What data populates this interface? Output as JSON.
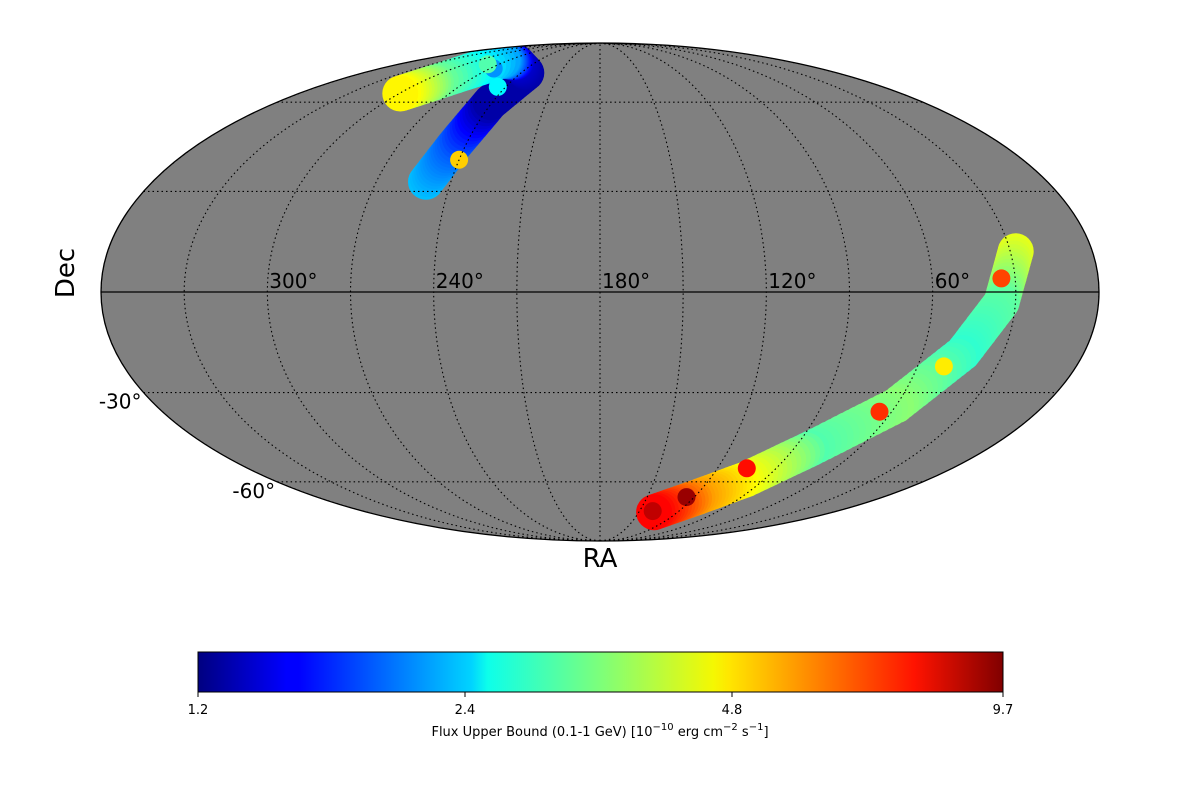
{
  "chart_data": {
    "type": "heatmap",
    "projection": "mollweide",
    "background_color": "#808080",
    "grid": true,
    "axis": {
      "xlabel": "RA",
      "ylabel": "Dec",
      "ra_ticks": [
        "300°",
        "240°",
        "180°",
        "120°",
        "60°"
      ],
      "dec_ticks": [
        "-30°",
        "-60°"
      ]
    },
    "colorbar": {
      "colormap": "jet",
      "orientation": "horizontal",
      "location": "bottom",
      "scale": "log",
      "vmin": 1.2,
      "vmax": 9.7,
      "ticks": [
        "1.2",
        "2.4",
        "4.8",
        "9.7"
      ],
      "label": {
        "main": "Flux Upper Bound (0.1-1 GeV) [10",
        "exp1": "−10",
        "mid1": " erg cm",
        "exp2": "−2",
        "mid2": " s",
        "exp3": "−1",
        "end": "]"
      }
    },
    "regions": [
      {
        "name": "",
        "flux_range": [
          1.2,
          4.8
        ],
        "path_radec": [
          [
            250,
            33
          ],
          [
            245,
            45
          ],
          [
            241,
            60
          ],
          [
            236,
            72
          ],
          [
            258,
            77
          ],
          [
            276,
            78
          ],
          [
            290,
            68
          ],
          [
            300,
            63
          ]
        ],
        "values": [
          2.3,
          1.9,
          1.3,
          1.3,
          1.4,
          2.2,
          3.3,
          4.6
        ],
        "hotspots": [
          {
            "ra": 240,
            "dec": 40,
            "value": 4.9
          },
          {
            "ra": 245,
            "dec": 66,
            "value": 2.6
          },
          {
            "ra": 267,
            "dec": 74,
            "value": 2.1
          },
          {
            "ra": 280,
            "dec": 76,
            "value": 3.1
          }
        ]
      },
      {
        "name": "",
        "flux_range": [
          2.4,
          9.7
        ],
        "path_radec": [
          [
            28,
            12
          ],
          [
            35,
            -3
          ],
          [
            45,
            -18
          ],
          [
            60,
            -34
          ],
          [
            82,
            -48
          ],
          [
            100,
            -59
          ],
          [
            118,
            -66
          ],
          [
            140,
            -73
          ]
        ],
        "values": [
          4.2,
          3.2,
          2.9,
          3.5,
          3.1,
          4.3,
          5.4,
          7.6
        ],
        "hotspots": [
          {
            "ra": 35,
            "dec": 4,
            "value": 6.5
          },
          {
            "ra": 50,
            "dec": -22,
            "value": 4.6
          },
          {
            "ra": 65,
            "dec": -36,
            "value": 6.8
          },
          {
            "ra": 105,
            "dec": -55,
            "value": 7.3
          },
          {
            "ra": 125,
            "dec": -66,
            "value": 9.2
          },
          {
            "ra": 140,
            "dec": -72,
            "value": 8.5
          }
        ]
      }
    ]
  }
}
